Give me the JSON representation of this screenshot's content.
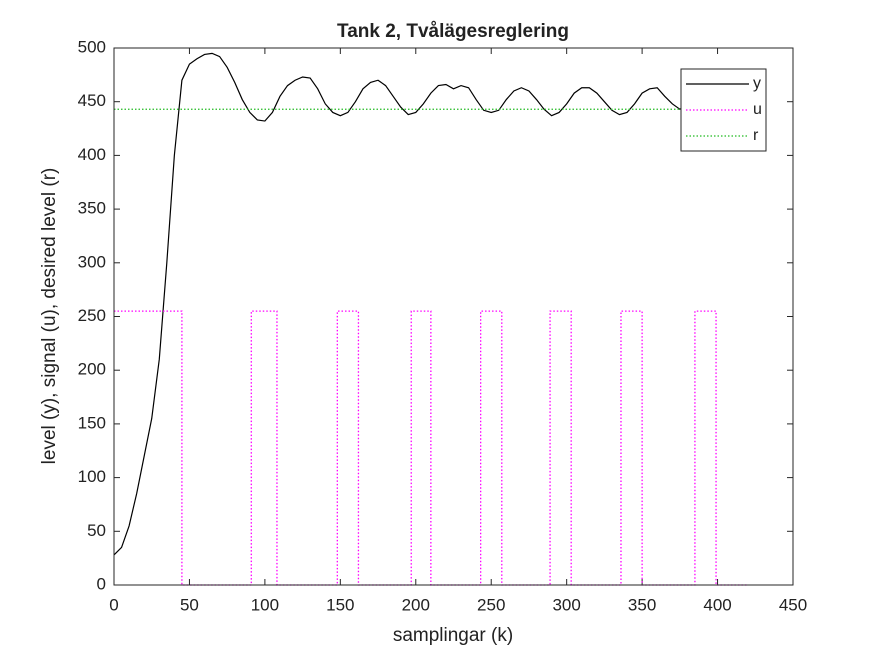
{
  "chart_data": {
    "type": "line",
    "title": "Tank 2, Tvålägesreglering",
    "xlabel": "samplingar (k)",
    "ylabel": "level (y), signal (u), desired level (r)",
    "xlim": [
      0,
      450
    ],
    "ylim": [
      0,
      500
    ],
    "xticks": [
      0,
      50,
      100,
      150,
      200,
      250,
      300,
      350,
      400,
      450
    ],
    "yticks": [
      0,
      50,
      100,
      150,
      200,
      250,
      300,
      350,
      400,
      450,
      500
    ],
    "legend": "northeast",
    "series": [
      {
        "name": "y",
        "color": "#000000",
        "dash": "solid",
        "x": [
          0,
          5,
          10,
          15,
          20,
          25,
          30,
          35,
          40,
          45,
          50,
          55,
          60,
          65,
          70,
          75,
          80,
          85,
          90,
          95,
          100,
          105,
          110,
          115,
          120,
          125,
          130,
          135,
          140,
          145,
          150,
          155,
          160,
          165,
          170,
          175,
          180,
          185,
          190,
          195,
          200,
          205,
          210,
          215,
          220,
          225,
          230,
          235,
          240,
          245,
          250,
          255,
          260,
          265,
          270,
          275,
          280,
          285,
          290,
          295,
          300,
          305,
          310,
          315,
          320,
          325,
          330,
          335,
          340,
          345,
          350,
          355,
          360,
          365,
          370,
          375,
          380,
          385,
          390,
          395,
          400,
          405,
          410,
          415,
          420
        ],
        "values": [
          28,
          35,
          55,
          85,
          120,
          155,
          210,
          300,
          400,
          470,
          485,
          490,
          494,
          495,
          492,
          482,
          468,
          452,
          440,
          433,
          432,
          440,
          455,
          465,
          470,
          473,
          472,
          462,
          448,
          440,
          437,
          440,
          450,
          462,
          468,
          470,
          465,
          455,
          445,
          438,
          440,
          448,
          458,
          465,
          466,
          462,
          465,
          463,
          452,
          442,
          440,
          442,
          452,
          460,
          463,
          460,
          452,
          443,
          437,
          440,
          448,
          458,
          463,
          463,
          458,
          450,
          442,
          438,
          440,
          448,
          458,
          462,
          463,
          455,
          448,
          443,
          447,
          455,
          460,
          462,
          458,
          450,
          446,
          445,
          448
        ]
      },
      {
        "name": "u",
        "color": "#ff00ff",
        "dash": "dotted",
        "x": [
          0,
          45,
          45,
          91,
          91,
          108,
          108,
          148,
          148,
          162,
          162,
          197,
          197,
          210,
          210,
          243,
          243,
          257,
          257,
          289,
          289,
          303,
          303,
          336,
          336,
          350,
          350,
          385,
          385,
          399,
          399,
          420
        ],
        "values": [
          255,
          255,
          0,
          0,
          255,
          255,
          0,
          0,
          255,
          255,
          0,
          0,
          255,
          255,
          0,
          0,
          255,
          255,
          0,
          0,
          255,
          255,
          0,
          0,
          255,
          255,
          0,
          0,
          255,
          255,
          0,
          0
        ]
      },
      {
        "name": "r",
        "color": "#22bb22",
        "dash": "dotted",
        "x": [
          0,
          420
        ],
        "values": [
          443,
          443
        ]
      }
    ]
  }
}
